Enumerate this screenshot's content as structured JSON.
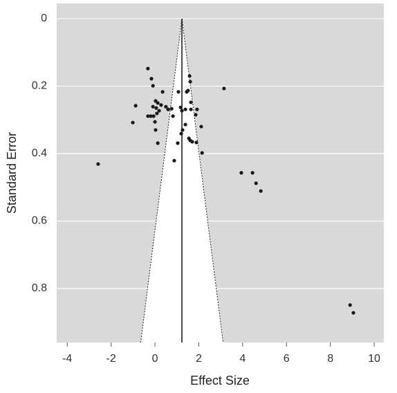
{
  "chart_data": {
    "type": "scatter",
    "x_label": "Effect Size",
    "y_label": "Standard Error",
    "x": [
      -2.59,
      -1.01,
      -0.88,
      -0.32,
      -0.16,
      -0.09,
      0.35,
      0.03,
      0.13,
      0.28,
      -0.09,
      0.06,
      0.19,
      -0.32,
      -0.19,
      -0.06,
      0.09,
      0.0,
      0.03,
      0.13,
      0.5,
      0.6,
      0.76,
      0.82,
      1.07,
      1.17,
      1.23,
      1.39,
      1.45,
      1.51,
      1.58,
      1.61,
      1.64,
      1.64,
      1.39,
      1.26,
      1.2,
      0.88,
      1.04,
      1.55,
      1.61,
      1.7,
      1.89,
      2.15,
      1.86,
      1.92,
      2.11,
      3.15,
      3.94,
      4.45,
      4.61,
      4.83,
      8.9,
      9.05
    ],
    "values": [
      0.431,
      0.308,
      0.258,
      0.148,
      0.178,
      0.199,
      0.217,
      0.244,
      0.25,
      0.256,
      0.261,
      0.265,
      0.273,
      0.289,
      0.289,
      0.289,
      0.281,
      0.306,
      0.33,
      0.369,
      0.261,
      0.269,
      0.267,
      0.289,
      0.217,
      0.263,
      0.273,
      0.269,
      0.217,
      0.213,
      0.17,
      0.187,
      0.248,
      0.269,
      0.314,
      0.33,
      0.341,
      0.421,
      0.369,
      0.355,
      0.361,
      0.365,
      0.367,
      0.398,
      0.285,
      0.269,
      0.32,
      0.207,
      0.457,
      0.457,
      0.488,
      0.511,
      0.849,
      0.872
    ],
    "color": "#1a1a1a",
    "summary_effect": 1.23,
    "funnel": {
      "x": [
        -0.65,
        1.23,
        3.11
      ],
      "y": [
        0.96,
        0,
        0.96
      ]
    },
    "xlim": [
      -4.48,
      10.44
    ],
    "xticks": [
      -4,
      -2,
      0,
      2,
      4,
      6,
      8,
      10
    ],
    "ylim": [
      -0.045,
      0.96
    ],
    "y_inverted": true,
    "yticks": [
      0,
      0.2,
      0.4,
      0.6,
      0.8
    ],
    "grid": true
  }
}
